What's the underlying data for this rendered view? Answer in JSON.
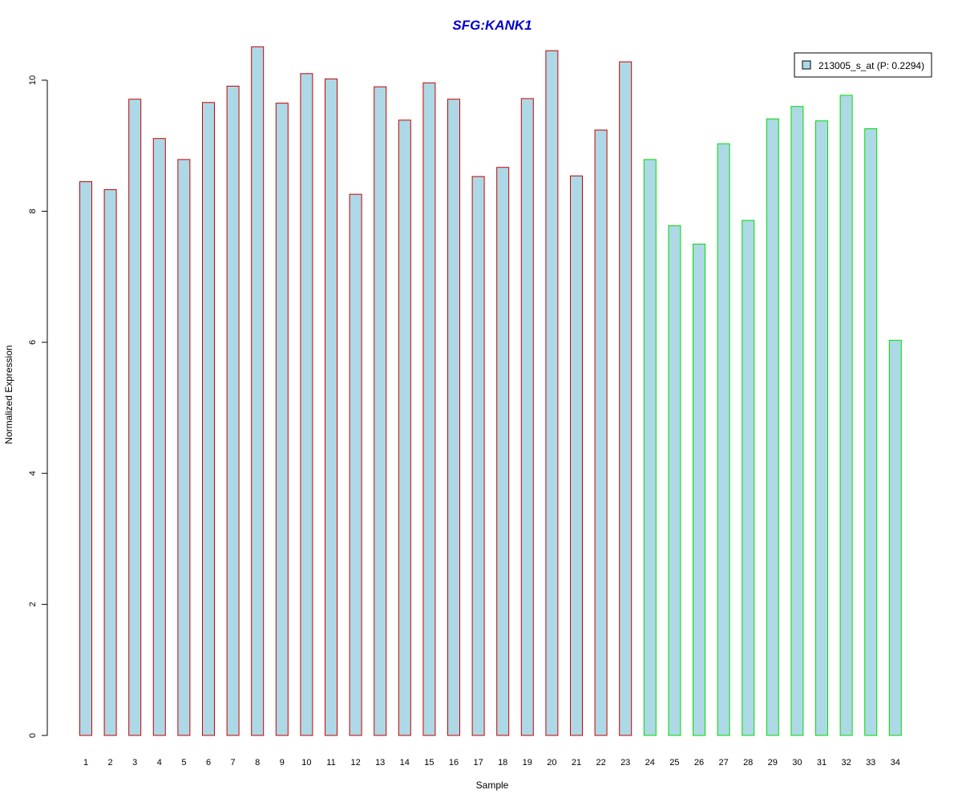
{
  "chart_data": {
    "type": "bar",
    "title": "SFG:KANK1",
    "xlabel": "Sample",
    "ylabel": "Normalized Expression",
    "ylim": [
      0,
      10.6
    ],
    "yticks": [
      0,
      2,
      4,
      6,
      8,
      10
    ],
    "categories": [
      "1",
      "2",
      "3",
      "4",
      "5",
      "6",
      "7",
      "8",
      "9",
      "10",
      "11",
      "12",
      "13",
      "14",
      "15",
      "16",
      "17",
      "18",
      "19",
      "20",
      "21",
      "22",
      "23",
      "24",
      "25",
      "26",
      "27",
      "28",
      "29",
      "30",
      "31",
      "32",
      "33",
      "34"
    ],
    "values": [
      8.45,
      8.33,
      9.71,
      9.11,
      8.79,
      9.66,
      9.91,
      10.51,
      9.65,
      10.1,
      10.02,
      8.26,
      9.9,
      9.39,
      9.96,
      9.71,
      8.53,
      8.67,
      9.72,
      10.45,
      8.54,
      9.24,
      10.28,
      8.79,
      7.78,
      7.5,
      9.03,
      7.86,
      9.41,
      9.6,
      9.38,
      9.77,
      9.26,
      6.03
    ],
    "groups": [
      "red",
      "red",
      "red",
      "red",
      "red",
      "red",
      "red",
      "red",
      "red",
      "red",
      "red",
      "red",
      "red",
      "red",
      "red",
      "red",
      "red",
      "red",
      "red",
      "red",
      "red",
      "red",
      "red",
      "green",
      "green",
      "green",
      "green",
      "green",
      "green",
      "green",
      "green",
      "green",
      "green",
      "green"
    ],
    "series": [
      {
        "name": "213005_s_at (P: 0.2294)",
        "fill": "#ADD8E6"
      }
    ],
    "colors": {
      "title": "#0000CC",
      "bar_fill": "#ADD8E6",
      "red": "#CC0000",
      "green": "#00DD00",
      "axis": "#000000"
    },
    "legend_position": "top-right",
    "grid": false
  }
}
